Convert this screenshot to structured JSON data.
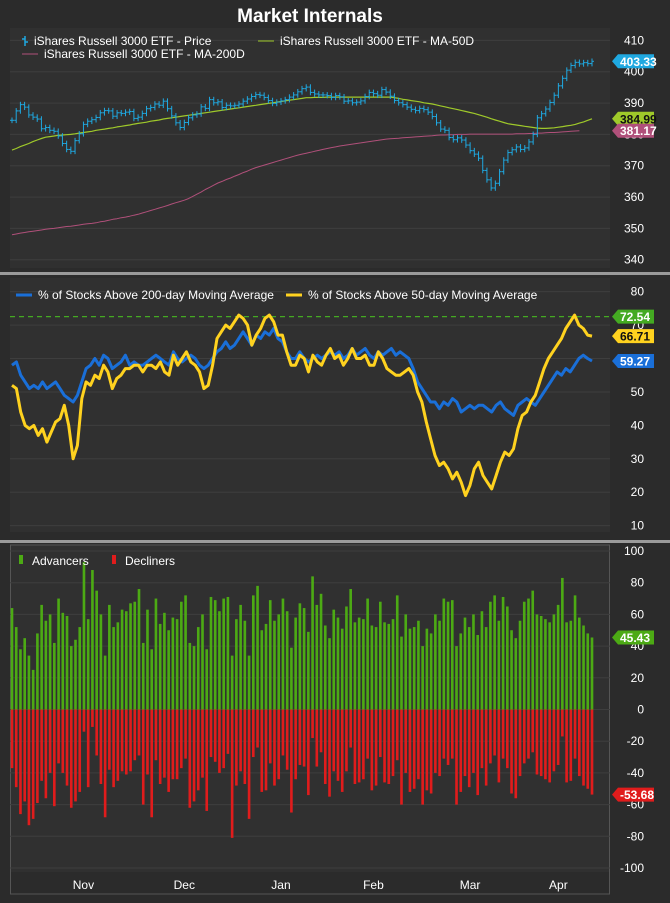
{
  "title": "Market Internals",
  "colors": {
    "background": "#2b2b2b",
    "plot_bg": "#303030",
    "grid": "#3e3e3e",
    "separator": "#9a9a9a",
    "text": "#ffffff",
    "price": "#1fa8e0",
    "ma50": "#9fc92a",
    "ma200": "#b0507a",
    "above200": "#1a6fd8",
    "above50": "#ffd21f",
    "reference": "#44aa22",
    "advancers": "#4caa14",
    "decliners": "#e01c1c"
  },
  "chart_data": [
    {
      "type": "line",
      "panel": "price",
      "x_labels": [
        "Nov",
        "Dec",
        "Jan",
        "Feb",
        "Mar",
        "Apr"
      ],
      "yticks": [
        340,
        350,
        360,
        370,
        380,
        390,
        400,
        410
      ],
      "ylim": [
        338,
        413
      ],
      "legend": [
        {
          "name": "iShares Russell 3000 ETF - Price",
          "icon": "ohlc-bar-icon",
          "color": "#1fa8e0"
        },
        {
          "name": "iShares Russell 3000 ETF - MA-50D",
          "icon": "line-icon",
          "color": "#9fc92a"
        },
        {
          "name": "iShares Russell 3000 ETF - MA-200D",
          "icon": "line-icon",
          "color": "#b0507a"
        }
      ],
      "last_value_labels": [
        {
          "text": "403.33",
          "value": 403.33,
          "color": "#1fa8e0"
        },
        {
          "text": "384.99",
          "value": 384.99,
          "color": "#9fc92a"
        },
        {
          "text": "381.17",
          "value": 381.17,
          "color": "#b0507a"
        }
      ],
      "series": {
        "price": [
          384.5,
          387.5,
          389.5,
          388.7,
          386.2,
          385.5,
          384.9,
          381.8,
          382.2,
          381.3,
          381.0,
          379.5,
          377.1,
          375.2,
          374.6,
          378.0,
          380.2,
          383.2,
          384.2,
          384.7,
          385.4,
          386.9,
          387.6,
          387.5,
          385.8,
          386.9,
          386.7,
          387.1,
          387.3,
          385.1,
          385.5,
          386.7,
          388.2,
          388.6,
          389.7,
          389.3,
          390.6,
          388.2,
          385.9,
          383.7,
          382.2,
          383.8,
          385.3,
          386.2,
          386.5,
          388.8,
          388.3,
          391.1,
          390.1,
          390.4,
          388.6,
          389.3,
          389.1,
          389.3,
          389.7,
          390.6,
          391.3,
          392.1,
          392.7,
          392.5,
          391.8,
          390.8,
          389.9,
          390.3,
          390.7,
          391.1,
          391.9,
          392.6,
          393.6,
          394.6,
          395.1,
          393.4,
          392.9,
          392.6,
          392.6,
          392.4,
          391.8,
          392.4,
          392.0,
          390.6,
          390.7,
          390.1,
          390.3,
          390.7,
          392.1,
          393.4,
          393.0,
          392.5,
          394.3,
          393.5,
          392.2,
          390.8,
          390.1,
          389.5,
          388.7,
          388.0,
          387.6,
          388.3,
          387.9,
          387.1,
          385.7,
          383.7,
          381.7,
          381.3,
          379.0,
          378.3,
          378.9,
          378.2,
          376.6,
          374.8,
          373.7,
          372.4,
          368.5,
          365.5,
          362.9,
          364.4,
          368.1,
          371.8,
          374.2,
          375.1,
          376.0,
          375.2,
          375.7,
          377.6,
          380.0,
          385.3,
          386.6,
          388.1,
          390.2,
          392.5,
          395.5,
          397.9,
          400.5,
          402.0,
          403.0,
          402.5,
          402.9,
          402.6,
          403.33
        ],
        "ma50": [
          375,
          375.5,
          376.1,
          376.6,
          377.1,
          377.7,
          378.2,
          378.7,
          379.1,
          379.3,
          379.5,
          379.7,
          379.8,
          379.9,
          380,
          380.2,
          380.4,
          380.6,
          380.8,
          381,
          381.3,
          381.5,
          381.7,
          381.9,
          382.1,
          382.4,
          382.6,
          382.8,
          383,
          383.3,
          383.5,
          383.7,
          383.9,
          384.2,
          384.4,
          384.6,
          384.9,
          385.1,
          385.3,
          385.5,
          385.7,
          385.9,
          386.1,
          386.3,
          386.5,
          386.7,
          386.9,
          387.1,
          387.3,
          387.5,
          387.7,
          387.9,
          388.1,
          388.3,
          388.5,
          388.7,
          388.9,
          389.1,
          389.3,
          389.5,
          389.7,
          389.9,
          390.1,
          390.3,
          390.5,
          390.7,
          390.9,
          391.1,
          391.3,
          391.5,
          391.7,
          391.7,
          391.8,
          391.8,
          391.8,
          391.9,
          391.9,
          391.9,
          391.9,
          391.9,
          391.9,
          391.9,
          391.9,
          391.9,
          391.9,
          391.9,
          391.9,
          391.9,
          391.9,
          391.9,
          391.9,
          391.7,
          391.5,
          391.2,
          391,
          390.8,
          390.6,
          390.4,
          390.1,
          389.9,
          389.7,
          389.4,
          389.1,
          388.8,
          388.5,
          388.2,
          387.9,
          387.6,
          387.3,
          387,
          386.7,
          386.3,
          385.9,
          385.5,
          385,
          384.6,
          384.2,
          383.8,
          383.4,
          383.2,
          383,
          382.8,
          382.6,
          382.4,
          382.2,
          382,
          381.9,
          381.9,
          382,
          382.1,
          382.3,
          382.5,
          382.7,
          382.9,
          383.2,
          383.6,
          384,
          384.5,
          384.99
        ],
        "ma200": [
          348,
          348.2,
          348.5,
          348.7,
          348.9,
          349.1,
          349.3,
          349.5,
          349.7,
          349.9,
          350,
          350.2,
          350.4,
          350.6,
          350.7,
          350.9,
          351.1,
          351.3,
          351.5,
          351.6,
          351.8,
          352.1,
          352.3,
          352.6,
          352.9,
          353.1,
          353.4,
          353.6,
          353.9,
          354.2,
          354.5,
          354.9,
          355.3,
          355.7,
          356.1,
          356.5,
          356.9,
          357.3,
          357.8,
          358.2,
          358.6,
          359,
          359.5,
          360.2,
          360.9,
          361.6,
          362.4,
          363.1,
          363.8,
          364.5,
          365,
          365.6,
          366.1,
          366.7,
          367.2,
          367.8,
          368.3,
          368.9,
          369.4,
          369.8,
          370.2,
          370.6,
          371,
          371.4,
          371.8,
          372.2,
          372.6,
          373,
          373.4,
          373.7,
          374,
          374.3,
          374.6,
          374.9,
          375.2,
          375.5,
          375.8,
          376,
          376.3,
          376.5,
          376.7,
          376.9,
          377.1,
          377.3,
          377.5,
          377.7,
          377.9,
          378.1,
          378.3,
          378.5,
          378.6,
          378.7,
          378.8,
          378.9,
          379,
          379.1,
          379.2,
          379.3,
          379.4,
          379.5,
          379.6,
          379.7,
          379.8,
          379.8,
          379.9,
          379.9,
          380,
          380,
          380,
          380.1,
          380.1,
          380.1,
          380.1,
          380.1,
          380.1,
          380.1,
          380.1,
          380.1,
          380.1,
          380.1,
          380.2,
          380.2,
          380.2,
          380.3,
          380.3,
          380.4,
          380.4,
          380.5,
          380.6,
          380.6,
          380.7,
          380.8,
          380.9,
          381,
          381.1,
          381.17
        ]
      }
    },
    {
      "type": "line",
      "panel": "breadth",
      "yticks": [
        10,
        20,
        30,
        40,
        50,
        60,
        70,
        80
      ],
      "ylim": [
        9,
        82
      ],
      "reference_line": 72.54,
      "legend": [
        {
          "name": "% of Stocks Above 200-day Moving Average",
          "color": "#1a6fd8"
        },
        {
          "name": "% of Stocks Above 50-day Moving Average",
          "color": "#ffd21f"
        }
      ],
      "last_value_labels": [
        {
          "text": "72.54",
          "value": 72.54,
          "color": "#44aa22"
        },
        {
          "text": "66.71",
          "value": 66.71,
          "color": "#ffd21f"
        },
        {
          "text": "59.27",
          "value": 59.27,
          "color": "#1a6fd8"
        }
      ],
      "series": {
        "above200": [
          58,
          59,
          55,
          53,
          51,
          52,
          51,
          53,
          51,
          52,
          53,
          51,
          49,
          48,
          47,
          49,
          53,
          57,
          58,
          60,
          58,
          61,
          60,
          57,
          58,
          59,
          61,
          58,
          59,
          58,
          58,
          59,
          60,
          61,
          60,
          59,
          58,
          62,
          60,
          59,
          60,
          61,
          60,
          58,
          57,
          58,
          60,
          62,
          63,
          65,
          63,
          64,
          66,
          68,
          66,
          64,
          67,
          66,
          68,
          67,
          69,
          66,
          65,
          62,
          60,
          60,
          62,
          60,
          59,
          60,
          61,
          60,
          61,
          62,
          61,
          62,
          60,
          61,
          63,
          61,
          62,
          63,
          61,
          60,
          62,
          61,
          62,
          63,
          61,
          62,
          61,
          60,
          57,
          53,
          51,
          49,
          47,
          47,
          45,
          47,
          46,
          48,
          47,
          44,
          45,
          46,
          45,
          46,
          46,
          45,
          44,
          46,
          47,
          45,
          44,
          43,
          46,
          47,
          48,
          47,
          46,
          48,
          50,
          52,
          54,
          56,
          55,
          57,
          56,
          58,
          60,
          61,
          60,
          59.27
        ],
        "above50": [
          52,
          51,
          44,
          40,
          39,
          40,
          37,
          39,
          35,
          38,
          41,
          42,
          46,
          40,
          30,
          34,
          48,
          53,
          52,
          55,
          54,
          58,
          56,
          51,
          54,
          55,
          57,
          57,
          58,
          58,
          56,
          58,
          58,
          57,
          59,
          56,
          55,
          61,
          58,
          60,
          62,
          59,
          58,
          56,
          51,
          52,
          58,
          66,
          68,
          70,
          69,
          71,
          73,
          72,
          70,
          64,
          67,
          69,
          72,
          73,
          71,
          67,
          67,
          62,
          58,
          58,
          61,
          60,
          56,
          61,
          59,
          58,
          61,
          63,
          60,
          61,
          58,
          60,
          63,
          60,
          60,
          61,
          58,
          58,
          62,
          60,
          57,
          56,
          55,
          55,
          56,
          57,
          55,
          50,
          47,
          41,
          36,
          31,
          28,
          29,
          27,
          24,
          26,
          23,
          19,
          22,
          27,
          29,
          25,
          23,
          21,
          25,
          29,
          32,
          31,
          33,
          39,
          43,
          44,
          47,
          49,
          53,
          57,
          60,
          62,
          64,
          66,
          69,
          71,
          73,
          70,
          69,
          67,
          66.71
        ]
      }
    },
    {
      "type": "bar",
      "panel": "advance_decline",
      "yticks": [
        -100,
        -80,
        -60,
        -40,
        -20,
        0,
        20,
        40,
        60,
        80,
        100
      ],
      "ylim": [
        -100,
        100
      ],
      "legend": [
        {
          "name": "Advancers",
          "color": "#4caa14"
        },
        {
          "name": "Decliners",
          "color": "#e01c1c"
        }
      ],
      "last_value_labels": [
        {
          "text": "45.43",
          "value": 45.43,
          "color": "#4caa14"
        },
        {
          "text": "-53.68",
          "value": -53.68,
          "color": "#e01c1c"
        }
      ],
      "series": {
        "advancers": [
          64,
          52,
          38,
          45,
          34,
          25,
          48,
          66,
          56,
          60,
          42,
          70,
          61,
          59,
          40,
          44,
          52,
          93,
          57,
          88,
          75,
          60,
          34,
          66,
          52,
          55,
          63,
          62,
          67,
          68,
          76,
          42,
          63,
          38,
          70,
          54,
          61,
          50,
          58,
          57,
          68,
          72,
          42,
          40,
          52,
          60,
          38,
          71,
          69,
          62,
          70,
          71,
          34,
          57,
          66,
          56,
          34,
          72,
          78,
          50,
          54,
          69,
          56,
          60,
          70,
          62,
          39,
          58,
          67,
          64,
          49,
          84,
          66,
          73,
          53,
          45,
          63,
          58,
          51,
          65,
          76,
          55,
          58,
          57,
          70,
          53,
          52,
          68,
          55,
          54,
          57,
          72,
          46,
          60,
          51,
          52,
          56,
          40,
          51,
          48,
          60,
          56,
          70,
          68,
          69,
          40,
          48,
          58,
          52,
          60,
          47,
          62,
          52,
          68,
          72,
          56,
          71,
          65,
          50,
          45,
          56,
          68,
          70,
          75,
          60,
          59,
          57,
          55,
          60,
          66,
          83,
          55,
          56,
          72,
          58,
          53,
          48,
          45.43
        ],
        "advancers_color": "#4caa14",
        "decliners": [
          -37,
          -49,
          -66,
          -58,
          -73,
          -69,
          -59,
          -45,
          -56,
          -40,
          -61,
          -34,
          -40,
          -48,
          -62,
          -58,
          -52,
          -14,
          -49,
          -11,
          -29,
          -47,
          -68,
          -38,
          -49,
          -45,
          -39,
          -41,
          -39,
          -32,
          -29,
          -60,
          -41,
          -68,
          -32,
          -47,
          -43,
          -52,
          -44,
          -44,
          -37,
          -31,
          -62,
          -58,
          -51,
          -43,
          -64,
          -30,
          -33,
          -40,
          -37,
          -28,
          -81,
          -48,
          -39,
          -47,
          -69,
          -30,
          -24,
          -52,
          -51,
          -34,
          -48,
          -44,
          -29,
          -38,
          -65,
          -44,
          -35,
          -36,
          -54,
          -18,
          -36,
          -27,
          -47,
          -55,
          -39,
          -45,
          -52,
          -39,
          -24,
          -47,
          -46,
          -44,
          -31,
          -51,
          -48,
          -30,
          -46,
          -47,
          -42,
          -32,
          -60,
          -40,
          -52,
          -50,
          -44,
          -60,
          -51,
          -53,
          -40,
          -42,
          -31,
          -35,
          -31,
          -60,
          -52,
          -42,
          -49,
          -40,
          -54,
          -37,
          -48,
          -34,
          -29,
          -46,
          -31,
          -37,
          -53,
          -56,
          -42,
          -34,
          -31,
          -27,
          -41,
          -42,
          -44,
          -46,
          -39,
          -35,
          -17,
          -46,
          -45,
          -31,
          -42,
          -48,
          -50,
          -53.68
        ],
        "decliners_color": "#e01c1c"
      }
    }
  ]
}
